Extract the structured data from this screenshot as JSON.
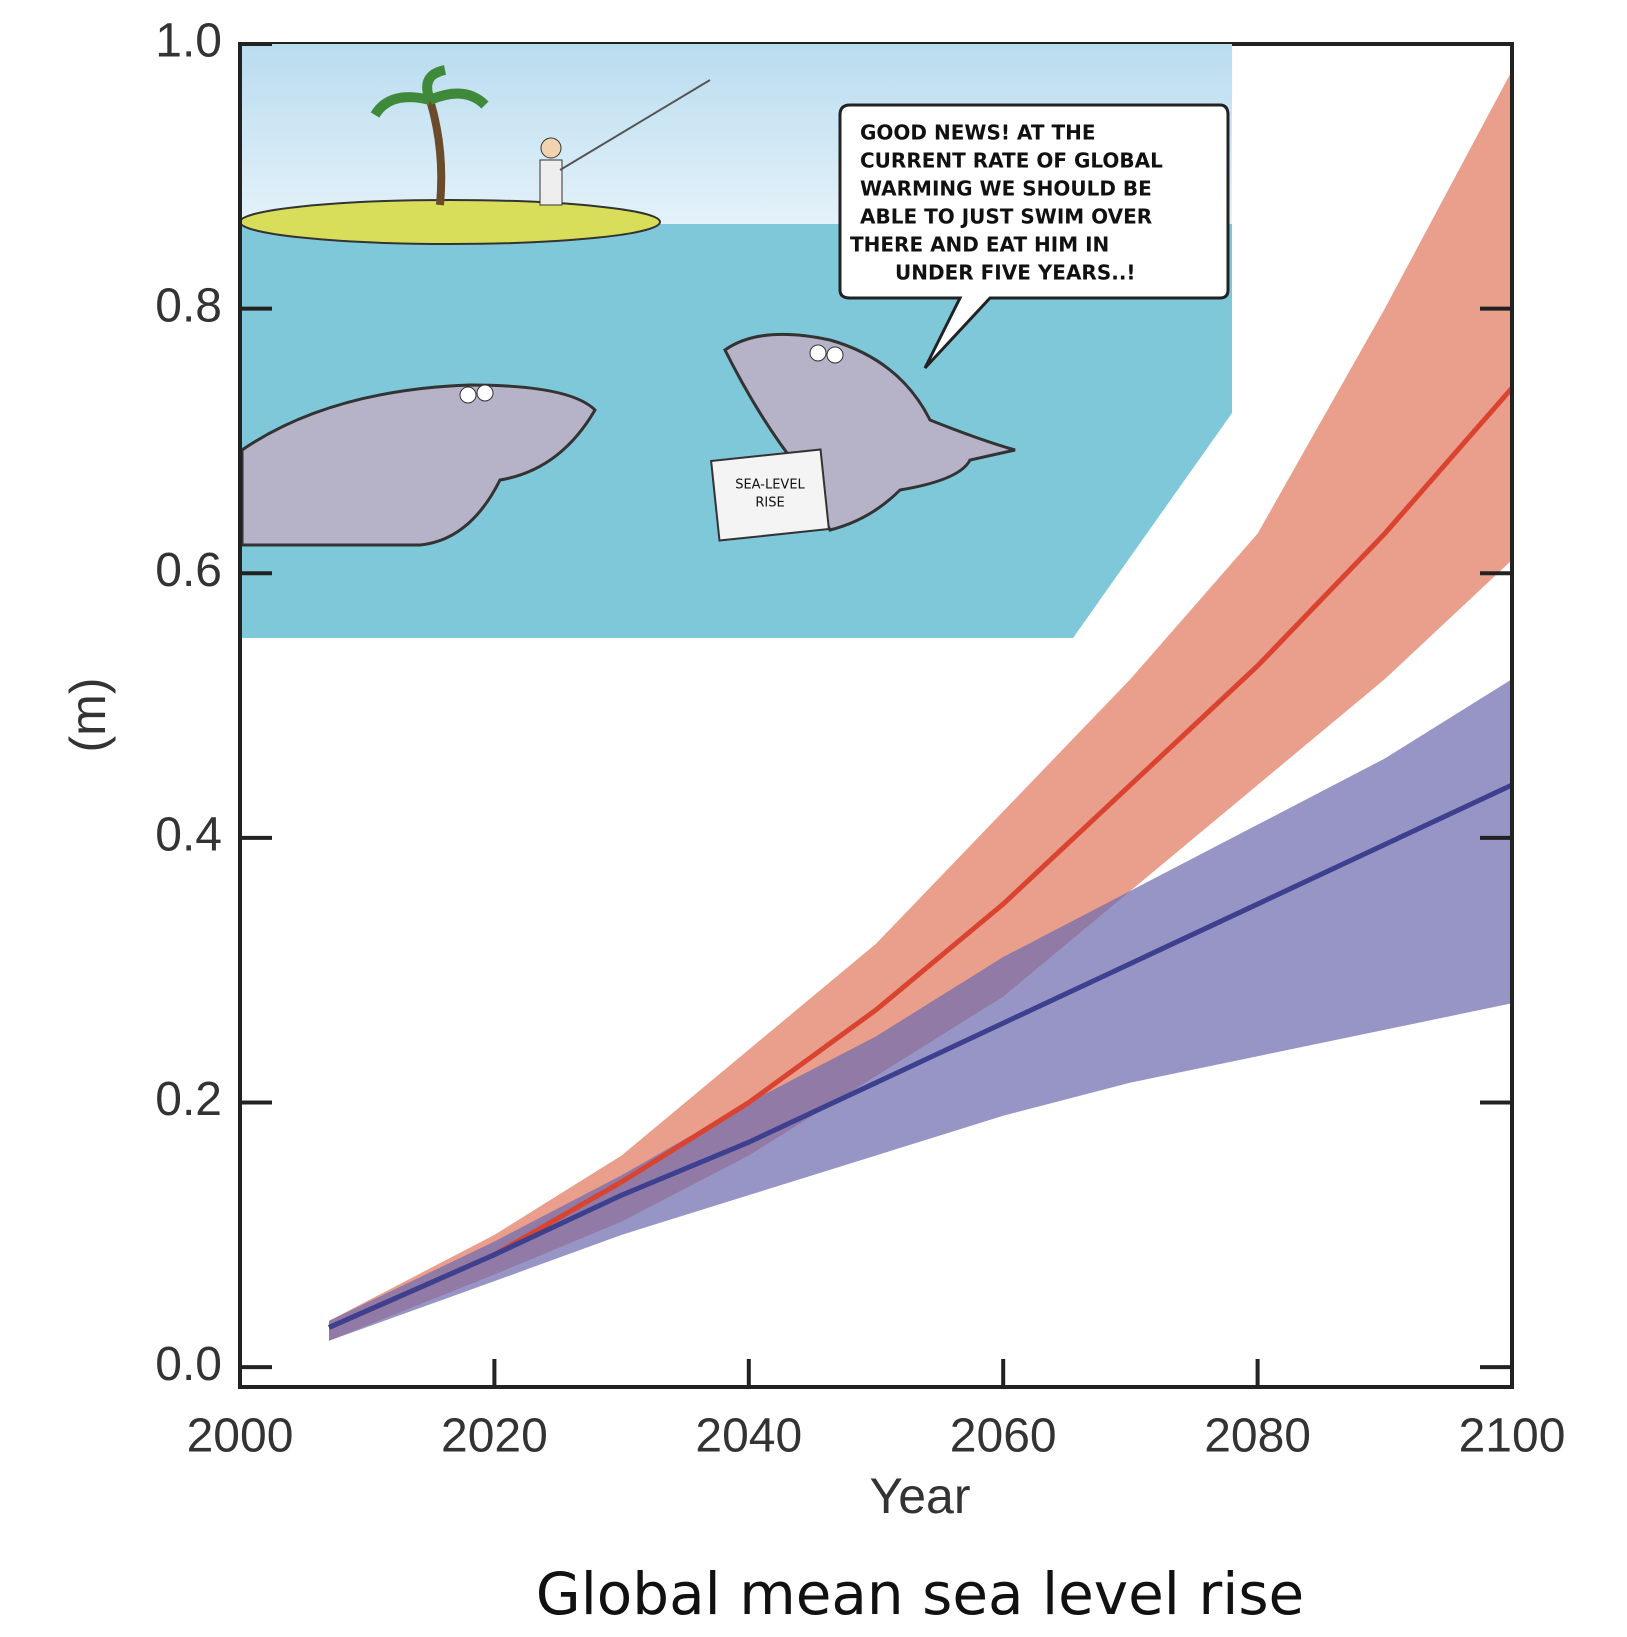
{
  "chart_data": {
    "type": "band-line",
    "title": "Global mean sea level rise",
    "x_label": "Year",
    "y_label": "(m)",
    "x": [
      2007,
      2020,
      2030,
      2040,
      2050,
      2060,
      2070,
      2080,
      2090,
      2100
    ],
    "series": [
      {
        "color": "#d9432f",
        "band_color": "#e07a5f",
        "values": [
          0.03,
          0.085,
          0.14,
          0.2,
          0.27,
          0.35,
          0.44,
          0.53,
          0.63,
          0.74
        ],
        "upper": [
          0.035,
          0.1,
          0.16,
          0.24,
          0.32,
          0.42,
          0.52,
          0.63,
          0.8,
          0.98
        ],
        "lower": [
          0.02,
          0.07,
          0.11,
          0.16,
          0.22,
          0.28,
          0.36,
          0.44,
          0.52,
          0.61
        ]
      },
      {
        "color": "#3d3f8f",
        "band_color": "#6f6cb0",
        "values": [
          0.03,
          0.085,
          0.13,
          0.17,
          0.215,
          0.26,
          0.305,
          0.35,
          0.395,
          0.44
        ],
        "upper": [
          0.035,
          0.095,
          0.145,
          0.2,
          0.25,
          0.31,
          0.36,
          0.41,
          0.46,
          0.52
        ],
        "lower": [
          0.02,
          0.065,
          0.1,
          0.13,
          0.16,
          0.19,
          0.215,
          0.235,
          0.255,
          0.275
        ]
      }
    ],
    "xlim": [
      2000,
      2100
    ],
    "ylim": [
      -0.015,
      1.0
    ],
    "xticks": [
      2000,
      2020,
      2040,
      2060,
      2080,
      2100
    ],
    "yticks": [
      {
        "value": 0,
        "label": "0.0"
      },
      0.2,
      0.4,
      0.6,
      0.8,
      {
        "value": 1,
        "label": "1.0"
      }
    ],
    "cartoon_speech": [
      "GOOD NEWS!  AT THE",
      "CURRENT RATE OF GLOBAL",
      "WARMING WE SHOULD BE",
      "ABLE TO JUST SWIM OVER",
      "THERE AND EAT HIM IN",
      "UNDER FIVE YEARS..!"
    ],
    "cartoon_sign": [
      "SEA-LEVEL",
      "RISE"
    ]
  }
}
